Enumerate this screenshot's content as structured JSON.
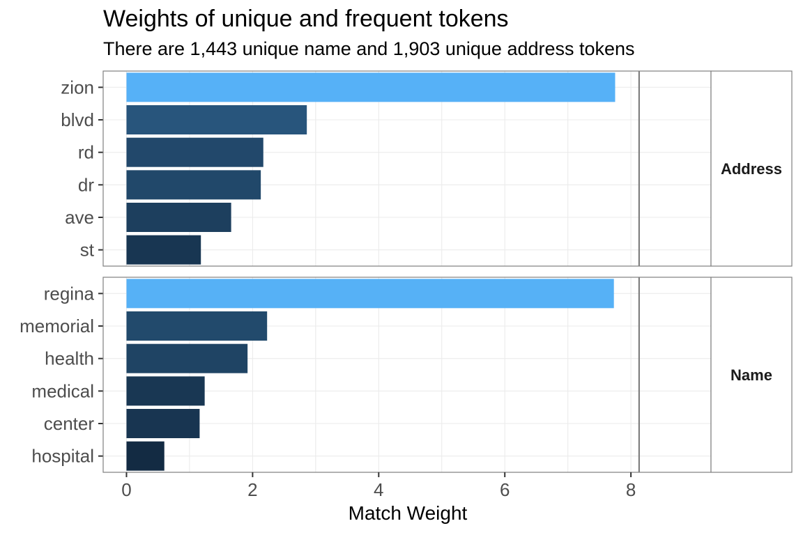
{
  "chart_data": {
    "type": "bar",
    "orientation": "horizontal",
    "title": "Weights of unique and frequent tokens",
    "subtitle": "There are 1,443 unique name and 1,903 unique address tokens",
    "xlabel": "Match Weight",
    "ylabel": "",
    "xlim": [
      -0.37,
      9.27
    ],
    "x_ticks": [
      0,
      2,
      4,
      6,
      8
    ],
    "reference_line_x": 8.13,
    "grid": true,
    "colors": {
      "low": "#132B43",
      "high": "#56B1F7"
    },
    "panels": [
      {
        "facet": "Address",
        "categories": [
          "zion",
          "blvd",
          "rd",
          "dr",
          "ave",
          "st"
        ],
        "values": [
          7.75,
          2.86,
          2.17,
          2.13,
          1.66,
          1.18
        ]
      },
      {
        "facet": "Name",
        "categories": [
          "regina",
          "memorial",
          "health",
          "medical",
          "center",
          "hospital"
        ],
        "values": [
          7.73,
          2.23,
          1.92,
          1.24,
          1.16,
          0.6
        ]
      }
    ]
  }
}
